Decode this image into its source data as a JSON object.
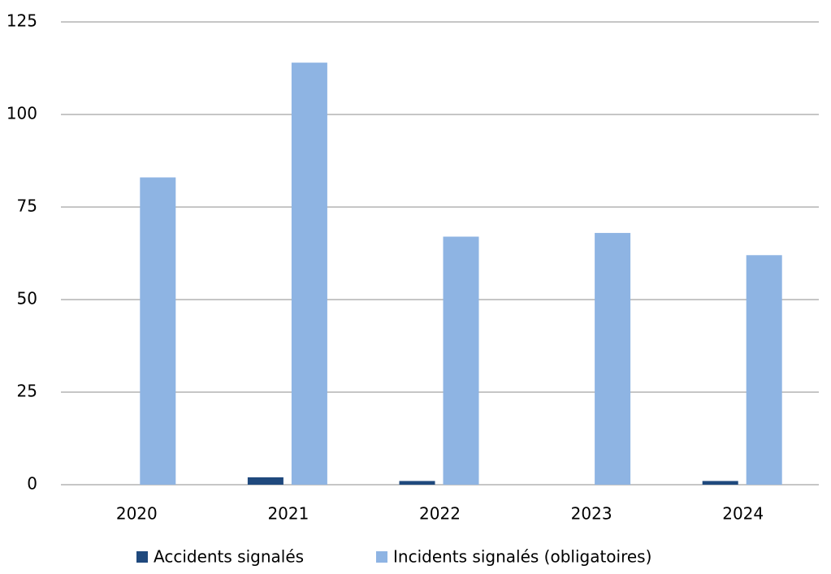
{
  "chart_data": {
    "type": "bar",
    "categories": [
      "2020",
      "2021",
      "2022",
      "2023",
      "2024"
    ],
    "series": [
      {
        "name": "Accidents signalés",
        "color": "#1f497d",
        "values": [
          0,
          2,
          1,
          0,
          1
        ]
      },
      {
        "name": "Incidents signalés (obligatoires)",
        "color": "#8eb4e3",
        "values": [
          83,
          114,
          67,
          68,
          62
        ]
      }
    ],
    "ylim": [
      0,
      125
    ],
    "yticks": [
      0,
      25,
      50,
      75,
      100,
      125
    ],
    "grid": true,
    "legend": "bottom"
  }
}
